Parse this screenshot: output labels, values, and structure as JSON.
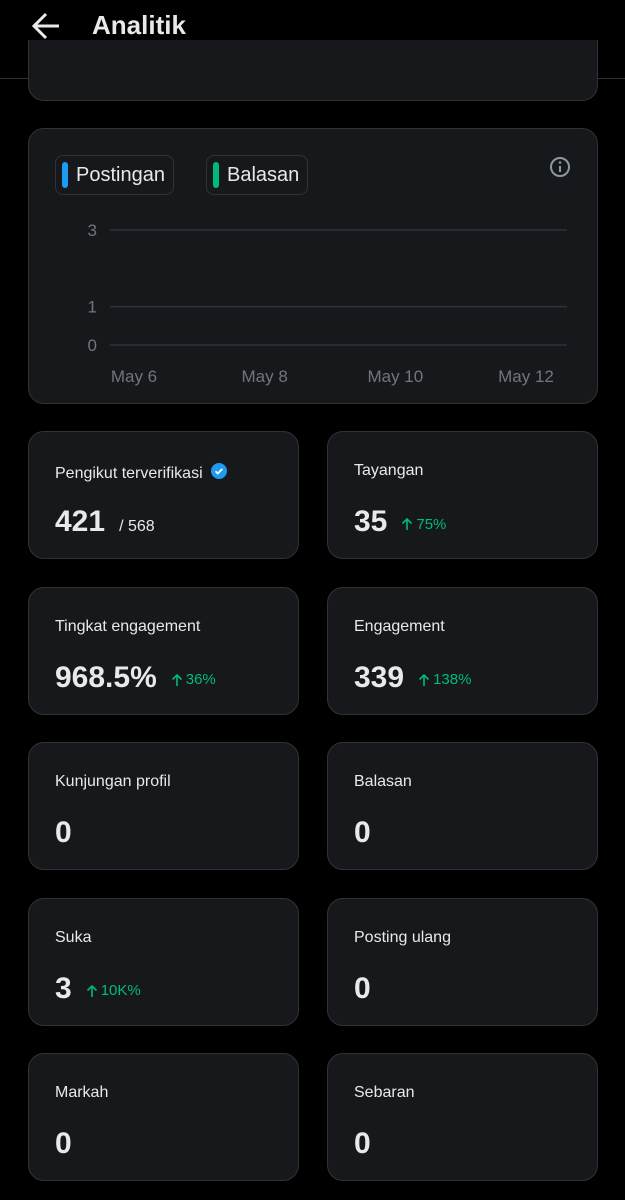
{
  "header": {
    "title": "Analitik"
  },
  "chart_data": {
    "type": "line",
    "series": [
      {
        "name": "Postingan",
        "color": "#1d9bf0"
      },
      {
        "name": "Balasan",
        "color": "#00ba7c"
      }
    ],
    "categories": [
      "May 6",
      "May 8",
      "May 10",
      "May 12"
    ],
    "ylim": [
      0,
      3
    ],
    "yticks": [
      0,
      1,
      3
    ],
    "grid": true
  },
  "cards": [
    {
      "label": "Pengikut terverifikasi",
      "value": "421",
      "secondary": "/ 568",
      "verified": true
    },
    {
      "label": "Tayangan",
      "value": "35",
      "change": "75%"
    },
    {
      "label": "Tingkat engagement",
      "value": "968.5%",
      "change": "36%"
    },
    {
      "label": "Engagement",
      "value": "339",
      "change": "138%"
    },
    {
      "label": "Kunjungan profil",
      "value": "0"
    },
    {
      "label": "Balasan",
      "value": "0"
    },
    {
      "label": "Suka",
      "value": "3",
      "change": "10K%"
    },
    {
      "label": "Posting ulang",
      "value": "0"
    },
    {
      "label": "Markah",
      "value": "0"
    },
    {
      "label": "Sebaran",
      "value": "0"
    }
  ]
}
